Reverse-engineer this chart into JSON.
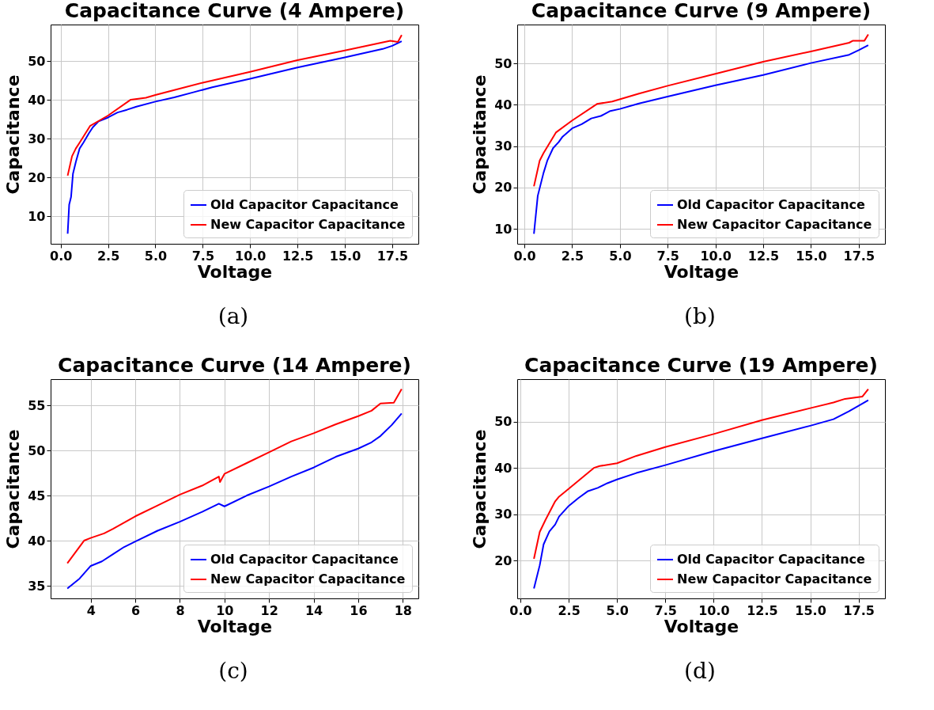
{
  "chart_data": [
    {
      "type": "line",
      "title": "Capacitance Curve (4 Ampere)",
      "xlabel": "Voltage",
      "ylabel": "Capacitance",
      "annotations": [
        "(a)"
      ],
      "xlim": [
        -0.53,
        18.88
      ],
      "ylim": [
        2.9,
        59.5
      ],
      "xticks": [
        {
          "value": 0,
          "label": "0.0"
        },
        2.5,
        {
          "value": 5,
          "label": "5.0"
        },
        7.5,
        {
          "value": 10,
          "label": "10.0"
        },
        12.5,
        {
          "value": 15,
          "label": "15.0"
        },
        17.5
      ],
      "yticks": [
        10,
        20,
        30,
        40,
        50
      ],
      "grid": true,
      "legend": "bottom right",
      "line_style": "solid",
      "series": [
        {
          "name": "Old Capacitor Capacitance",
          "color": "#0000ff",
          "x": [
            0.37,
            0.45,
            0.55,
            0.65,
            0.8,
            1.0,
            1.2,
            1.5,
            1.7,
            2.0,
            2.5,
            3.0,
            3.5,
            4.0,
            5.0,
            6.0,
            7.0,
            8.0,
            10.0,
            12.5,
            15.0,
            17.0,
            17.5,
            18.0
          ],
          "values": [
            5.5,
            13,
            15,
            21,
            24,
            27.5,
            29,
            31.5,
            33,
            34.5,
            35.5,
            36.8,
            37.5,
            38.3,
            39.6,
            40.7,
            42,
            43.3,
            45.5,
            48.4,
            51,
            53.2,
            54,
            55.2
          ]
        },
        {
          "name": "New Capacitor Capacitance",
          "color": "#ff0000",
          "x": [
            0.37,
            0.6,
            0.8,
            1.0,
            1.55,
            2.5,
            3.7,
            4.5,
            5.0,
            6.0,
            7.5,
            10.0,
            12.5,
            15.0,
            17.4,
            17.8,
            18.0
          ],
          "values": [
            20.5,
            25.5,
            27.5,
            29,
            33.3,
            36,
            40.1,
            40.6,
            41.3,
            42.6,
            44.5,
            47.3,
            50.3,
            52.8,
            55.3,
            55.0,
            56.8
          ]
        }
      ]
    },
    {
      "type": "line",
      "title": "Capacitance Curve (9 Ampere)",
      "xlabel": "Voltage",
      "ylabel": "Capacitance",
      "annotations": [
        "(b)"
      ],
      "xlim": [
        -0.375,
        18.875
      ],
      "ylim": [
        6.4,
        59.4
      ],
      "xticks": [
        {
          "value": 0,
          "label": "0.0"
        },
        2.5,
        {
          "value": 5,
          "label": "5.0"
        },
        7.5,
        {
          "value": 10,
          "label": "10.0"
        },
        12.5,
        {
          "value": 15,
          "label": "15.0"
        },
        17.5
      ],
      "yticks": [
        10,
        20,
        30,
        40,
        50
      ],
      "grid": true,
      "legend": "bottom right",
      "line_style": "solid",
      "series": [
        {
          "name": "Old Capacitor Capacitance",
          "color": "#0000ff",
          "x": [
            0.5,
            0.7,
            1.0,
            1.2,
            1.5,
            1.8,
            2.0,
            2.5,
            3.0,
            3.5,
            4.0,
            4.5,
            5.0,
            6.0,
            7.5,
            10.0,
            12.5,
            15.0,
            17.0,
            17.5,
            18.0
          ],
          "values": [
            8.8,
            18,
            23.5,
            26.5,
            29.5,
            31,
            32.3,
            34.3,
            35.3,
            36.7,
            37.3,
            38.5,
            39,
            40.3,
            42,
            44.7,
            47.2,
            50.1,
            52.1,
            53.2,
            54.4
          ]
        },
        {
          "name": "New Capacitor Capacitance",
          "color": "#ff0000",
          "x": [
            0.5,
            0.8,
            1.0,
            1.65,
            2.5,
            3.8,
            4.6,
            6.0,
            7.5,
            10.0,
            12.5,
            15.0,
            17.0,
            17.2,
            17.8,
            18.0
          ],
          "values": [
            20.3,
            26.5,
            28.3,
            33.3,
            36.2,
            40.2,
            40.8,
            42.7,
            44.6,
            47.5,
            50.4,
            52.9,
            55,
            55.5,
            55.5,
            57
          ]
        }
      ]
    },
    {
      "type": "line",
      "title": "Capacitance Curve (14 Ampere)",
      "xlabel": "Voltage",
      "ylabel": "Capacitance",
      "annotations": [
        "(c)"
      ],
      "xlim": [
        2.2,
        18.7
      ],
      "ylim": [
        33.6,
        57.9
      ],
      "xticks": [
        4,
        6,
        8,
        10,
        12,
        14,
        16,
        18
      ],
      "yticks": [
        35,
        40,
        45,
        50,
        55
      ],
      "grid": true,
      "legend": "bottom right",
      "line_style": "solid",
      "series": [
        {
          "name": "Old Capacitor Capacitance",
          "color": "#0000ff",
          "x": [
            2.95,
            3.5,
            4.0,
            4.5,
            5.0,
            5.5,
            6.0,
            7.0,
            8.0,
            9.0,
            9.75,
            10.0,
            11.0,
            12.0,
            13.0,
            14.0,
            15.0,
            16.0,
            16.6,
            17.0,
            17.5,
            17.95
          ],
          "values": [
            34.7,
            35.8,
            37.2,
            37.7,
            38.5,
            39.3,
            39.9,
            41.1,
            42.1,
            43.2,
            44.1,
            43.8,
            45,
            46,
            47.1,
            48.1,
            49.3,
            50.2,
            50.9,
            51.6,
            52.8,
            54.1
          ]
        },
        {
          "name": "New Capacitor Capacitance",
          "color": "#ff0000",
          "x": [
            2.95,
            3.7,
            4.0,
            4.6,
            5.0,
            6.0,
            7.0,
            8.0,
            9.0,
            9.75,
            9.8,
            10.0,
            11.0,
            12.0,
            13.0,
            14.0,
            15.0,
            16.0,
            16.6,
            17.0,
            17.6,
            17.95
          ],
          "values": [
            37.5,
            40,
            40.3,
            40.8,
            41.3,
            42.7,
            43.9,
            45.1,
            46.1,
            47.1,
            46.5,
            47.4,
            48.6,
            49.8,
            51,
            51.9,
            52.9,
            53.8,
            54.4,
            55.2,
            55.3,
            56.8
          ]
        }
      ]
    },
    {
      "type": "line",
      "title": "Capacitance Curve (19 Ampere)",
      "xlabel": "Voltage",
      "ylabel": "Capacitance",
      "annotations": [
        "(d)"
      ],
      "xlim": [
        -0.165,
        18.865
      ],
      "ylim": [
        11.85,
        59.15
      ],
      "xticks": [
        {
          "value": 0,
          "label": "0.0"
        },
        2.5,
        {
          "value": 5,
          "label": "5.0"
        },
        7.5,
        {
          "value": 10,
          "label": "10.0"
        },
        12.5,
        {
          "value": 15,
          "label": "15.0"
        },
        17.5
      ],
      "yticks": [
        20,
        30,
        40,
        50
      ],
      "grid": true,
      "legend": "bottom right",
      "line_style": "solid",
      "series": [
        {
          "name": "Old Capacitor Capacitance",
          "color": "#0000ff",
          "x": [
            0.7,
            1.0,
            1.2,
            1.5,
            1.8,
            2.0,
            2.5,
            3.0,
            3.5,
            4.0,
            4.5,
            5.0,
            6.0,
            7.5,
            10.0,
            12.5,
            15.0,
            16.2,
            17.0,
            18.0
          ],
          "values": [
            14,
            19,
            23.5,
            26.3,
            27.8,
            29.5,
            31.8,
            33.5,
            35,
            35.7,
            36.7,
            37.5,
            38.9,
            40.6,
            43.6,
            46.4,
            49.1,
            50.5,
            52.2,
            54.6
          ]
        },
        {
          "name": "New Capacitor Capacitance",
          "color": "#ff0000",
          "x": [
            0.7,
            1.0,
            1.3,
            1.8,
            2.0,
            2.5,
            3.8,
            4.1,
            5.0,
            6.0,
            7.5,
            10.0,
            12.5,
            15.0,
            16.2,
            16.8,
            17.7,
            18.0
          ],
          "values": [
            20.4,
            26.2,
            28.8,
            32.8,
            33.8,
            35.5,
            40,
            40.4,
            41,
            42.6,
            44.5,
            47.3,
            50.3,
            52.9,
            54.1,
            54.9,
            55.4,
            57
          ]
        }
      ]
    }
  ]
}
